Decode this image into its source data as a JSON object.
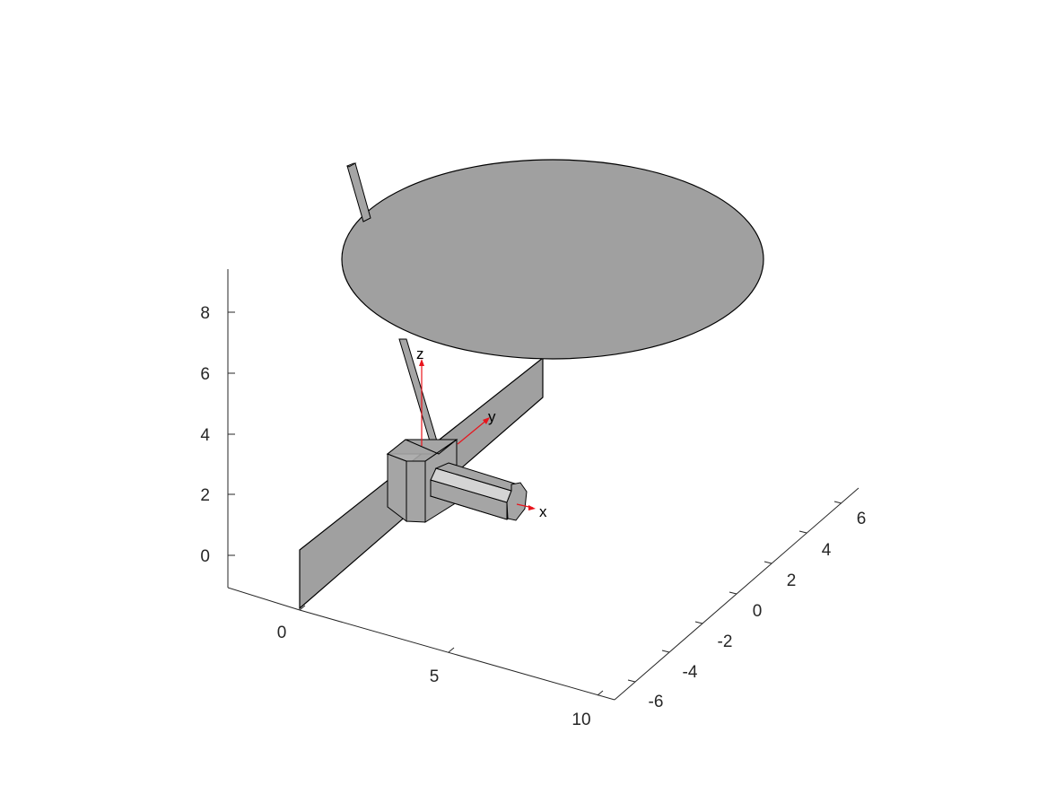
{
  "plot": {
    "z_ticks": [
      "0",
      "2",
      "4",
      "6",
      "8"
    ],
    "x_ticks": [
      "0",
      "5",
      "10"
    ],
    "y_ticks": [
      "-6",
      "-4",
      "-2",
      "0",
      "2",
      "4",
      "6"
    ]
  },
  "body_frame": {
    "x_label": "x",
    "y_label": "y",
    "z_label": "z"
  },
  "colors": {
    "panel": "#a0a0a0",
    "bus": "#a5a5a5",
    "cylinder_light": "#d4d4d4",
    "cylinder_dark": "#7a7a7a",
    "edge": "#000000",
    "frame_arrow": "#e8141c",
    "axis": "#262626"
  }
}
